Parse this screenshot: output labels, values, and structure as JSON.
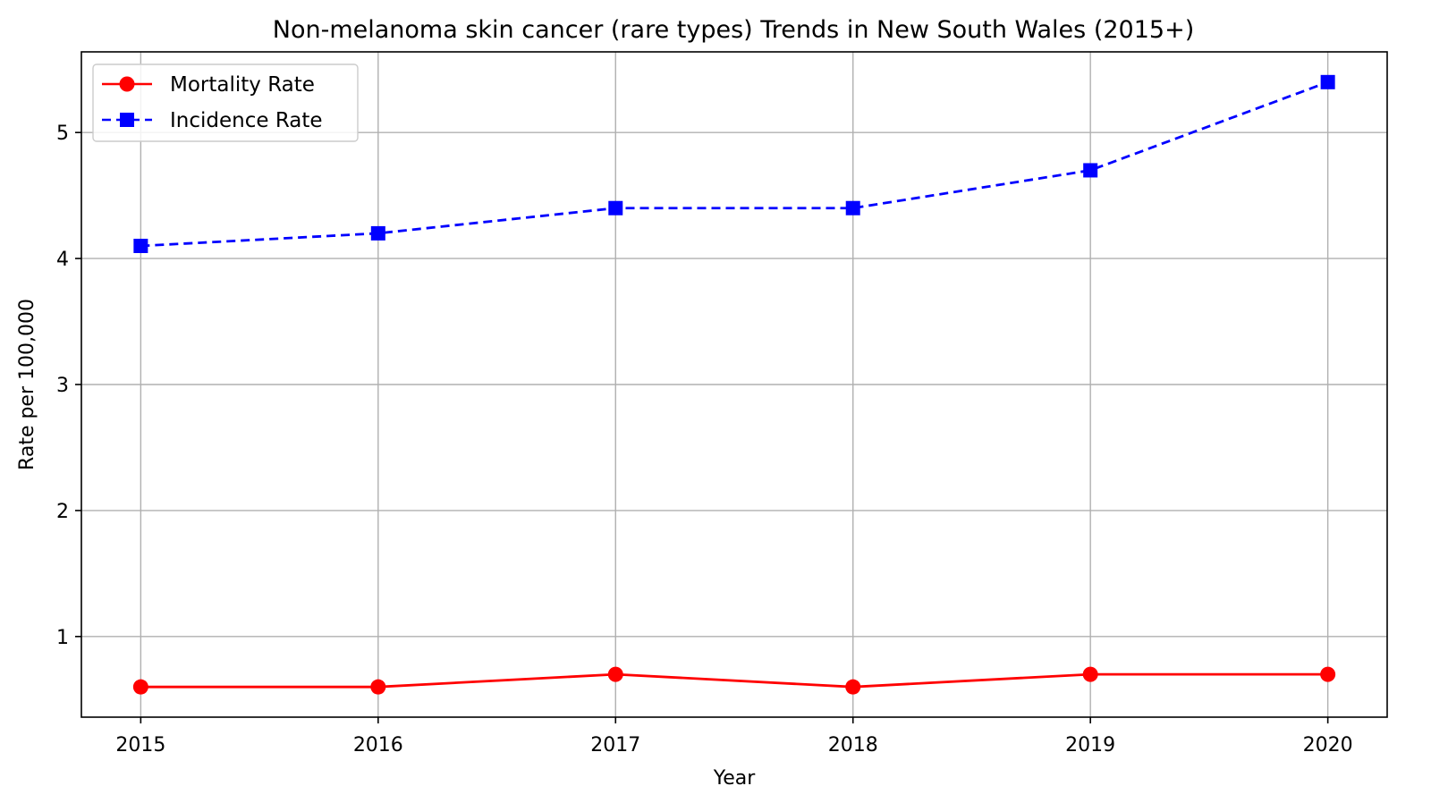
{
  "chart_data": {
    "type": "line",
    "title": "Non-melanoma skin cancer (rare types) Trends in New South Wales (2015+)",
    "xlabel": "Year",
    "ylabel": "Rate per 100,000",
    "x": [
      2015,
      2016,
      2017,
      2018,
      2019,
      2020
    ],
    "x_tick_labels": [
      "2015",
      "2016",
      "2017",
      "2018",
      "2019",
      "2020"
    ],
    "y_ticks": [
      1,
      2,
      3,
      4,
      5
    ],
    "y_tick_labels": [
      "1",
      "2",
      "3",
      "4",
      "5"
    ],
    "xlim": [
      2014.75,
      2020.25
    ],
    "ylim": [
      0.36,
      5.64
    ],
    "grid": true,
    "legend_position": "top-left",
    "series": [
      {
        "name": "Mortality Rate",
        "values": [
          0.6,
          0.6,
          0.7,
          0.6,
          0.7,
          0.7
        ],
        "color": "#ff0000",
        "line_style": "solid",
        "marker": "circle"
      },
      {
        "name": "Incidence Rate",
        "values": [
          4.1,
          4.2,
          4.4,
          4.4,
          4.7,
          5.4
        ],
        "color": "#0000ff",
        "line_style": "dashed",
        "marker": "square"
      }
    ]
  }
}
